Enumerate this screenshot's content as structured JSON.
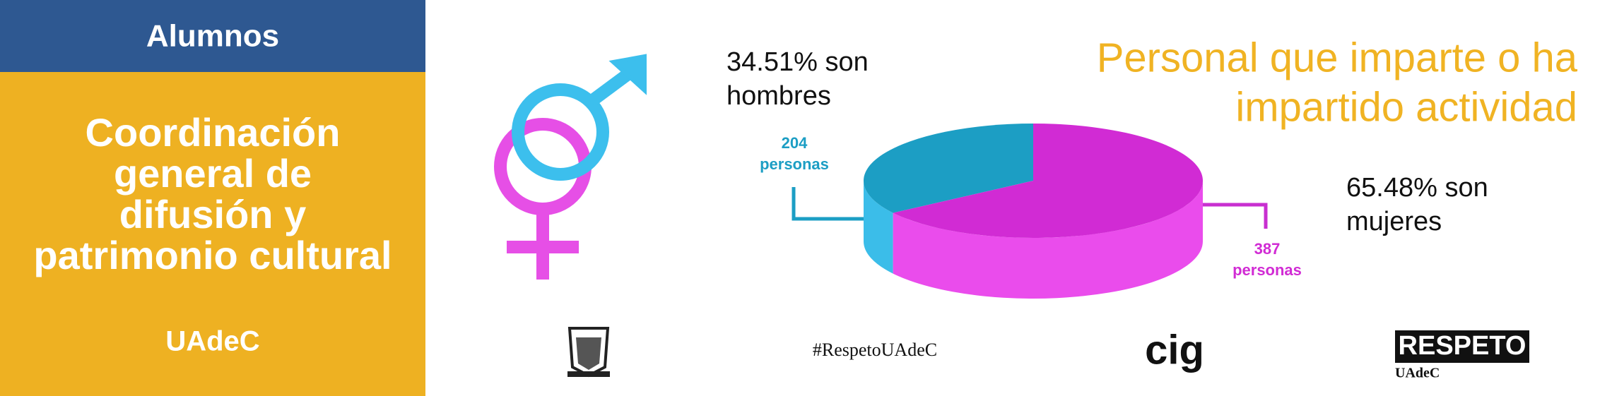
{
  "sidebar": {
    "header": "Alumnos",
    "title_lines": [
      "Coordinación",
      "general de",
      "difusión y",
      "patrimonio cultural"
    ],
    "subtitle": "UAdeC"
  },
  "chart_data": {
    "type": "pie",
    "title_lines": [
      "Personal que imparte o ha",
      "impartido actividad"
    ],
    "values": [
      204,
      387
    ],
    "value_labels": [
      [
        "204",
        "personas"
      ],
      [
        "387",
        "personas"
      ]
    ],
    "annotations": [
      [
        "34.51% son",
        "hombres"
      ],
      [
        "65.48% son",
        "mujeres"
      ]
    ],
    "colors": [
      "#1c9ec4",
      "#d12bd4"
    ],
    "side_colors": [
      "#3bbde9",
      "#ea4cec"
    ]
  },
  "logos": {
    "hashtag": "#RespetoUAdeC",
    "cig": "cig",
    "respeto": "RESPETO",
    "respeto_sub": "UAdeC"
  }
}
